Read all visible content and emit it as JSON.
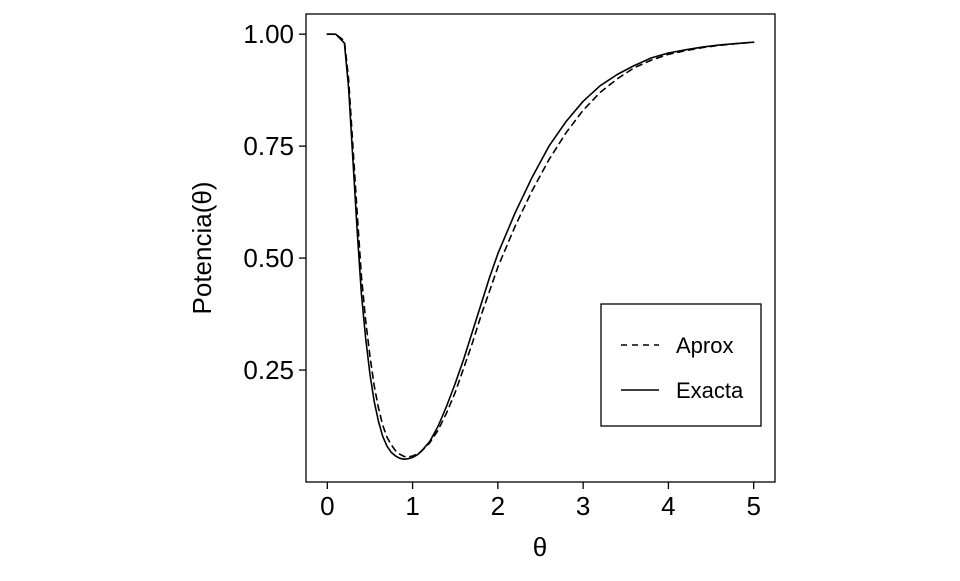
{
  "chart_data": {
    "type": "line",
    "xlabel": "θ",
    "ylabel": "Potencia(θ)",
    "xlim": [
      -0.25,
      5.25
    ],
    "ylim": [
      0.0,
      1.045
    ],
    "x_ticks": [
      0,
      1,
      2,
      3,
      4,
      5
    ],
    "x_tick_labels": [
      "0",
      "1",
      "2",
      "3",
      "4",
      "5"
    ],
    "y_ticks": [
      0.25,
      0.5,
      0.75,
      1.0
    ],
    "y_tick_labels": [
      "0.25",
      "0.50",
      "0.75",
      "1.00"
    ],
    "grid": false,
    "legend_position": "bottom-right",
    "series": [
      {
        "name": "Aprox",
        "style": "dashed",
        "color": "#000000",
        "x": [
          0.0,
          0.1,
          0.2,
          0.25,
          0.3,
          0.35,
          0.4,
          0.45,
          0.5,
          0.55,
          0.6,
          0.65,
          0.7,
          0.75,
          0.8,
          0.85,
          0.9,
          0.95,
          1.0,
          1.05,
          1.1,
          1.2,
          1.3,
          1.4,
          1.5,
          1.6,
          1.7,
          1.8,
          1.9,
          2.0,
          2.2,
          2.4,
          2.6,
          2.8,
          3.0,
          3.2,
          3.4,
          3.6,
          3.8,
          4.0,
          4.2,
          4.4,
          4.6,
          4.8,
          5.0
        ],
        "y": [
          1.0,
          1.0,
          0.985,
          0.9,
          0.75,
          0.6,
          0.46,
          0.36,
          0.28,
          0.215,
          0.165,
          0.127,
          0.1,
          0.083,
          0.07,
          0.062,
          0.057,
          0.056,
          0.058,
          0.062,
          0.068,
          0.087,
          0.116,
          0.155,
          0.2,
          0.255,
          0.31,
          0.37,
          0.425,
          0.48,
          0.57,
          0.65,
          0.72,
          0.78,
          0.83,
          0.87,
          0.9,
          0.925,
          0.942,
          0.955,
          0.963,
          0.97,
          0.975,
          0.979,
          0.982
        ]
      },
      {
        "name": "Exacta",
        "style": "solid",
        "color": "#000000",
        "x": [
          0.0,
          0.1,
          0.2,
          0.25,
          0.3,
          0.35,
          0.4,
          0.45,
          0.5,
          0.55,
          0.6,
          0.65,
          0.7,
          0.75,
          0.8,
          0.85,
          0.9,
          0.95,
          1.0,
          1.05,
          1.1,
          1.2,
          1.3,
          1.4,
          1.5,
          1.6,
          1.7,
          1.8,
          1.9,
          2.0,
          2.2,
          2.4,
          2.6,
          2.8,
          3.0,
          3.2,
          3.4,
          3.6,
          3.8,
          4.0,
          4.2,
          4.4,
          4.6,
          4.8,
          5.0
        ],
        "y": [
          1.0,
          1.0,
          0.98,
          0.88,
          0.72,
          0.56,
          0.42,
          0.32,
          0.24,
          0.18,
          0.135,
          0.102,
          0.08,
          0.066,
          0.058,
          0.053,
          0.051,
          0.052,
          0.055,
          0.06,
          0.068,
          0.09,
          0.125,
          0.17,
          0.22,
          0.275,
          0.335,
          0.395,
          0.455,
          0.51,
          0.6,
          0.68,
          0.75,
          0.805,
          0.85,
          0.885,
          0.91,
          0.93,
          0.947,
          0.958,
          0.965,
          0.971,
          0.976,
          0.979,
          0.982
        ]
      }
    ]
  }
}
